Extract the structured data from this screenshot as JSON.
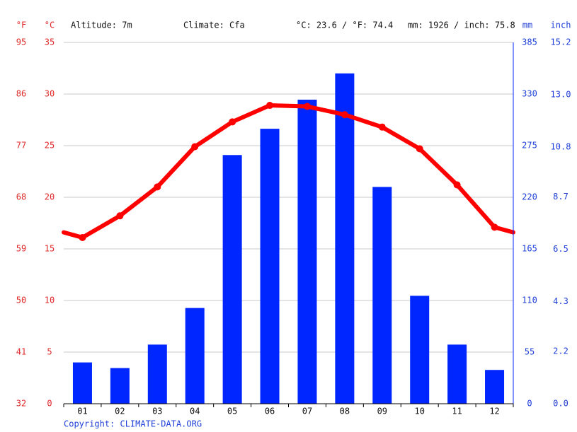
{
  "chart_data": {
    "type": "climate",
    "header": {
      "f_unit": "°F",
      "c_unit": "°C",
      "altitude": "Altitude: 7m",
      "climate": "Climate: Cfa",
      "temp_avg": "°C: 23.6 / °F: 74.4",
      "precip_total": "mm: 1926 / inch: 75.8",
      "mm_unit": "mm",
      "inch_unit": "inch"
    },
    "footer": "Copyright: CLIMATE-DATA.ORG",
    "categories": [
      "01",
      "02",
      "03",
      "04",
      "05",
      "06",
      "07",
      "08",
      "09",
      "10",
      "11",
      "12"
    ],
    "precipitation": {
      "color": "#0026ff",
      "values": [
        44,
        38,
        63,
        102,
        265,
        293,
        324,
        352,
        231,
        115,
        63,
        36
      ]
    },
    "temperature": {
      "color": "#ff0000",
      "values": [
        16.1,
        18.2,
        21.0,
        24.9,
        27.3,
        28.9,
        28.8,
        28.0,
        26.8,
        24.7,
        21.2,
        17.1
      ]
    },
    "ylim": [
      0,
      35
    ],
    "yticks": [
      0,
      5,
      10,
      15,
      20,
      25,
      30,
      35
    ],
    "yflim": [
      32,
      95
    ],
    "yfticks": [
      32,
      41,
      50,
      59,
      68,
      77,
      86,
      95
    ],
    "y2lim": [
      0,
      385
    ],
    "y2ticks": [
      0,
      55,
      110,
      165,
      220,
      275,
      330,
      385
    ],
    "y3lim": [
      0,
      15.2
    ],
    "y3ticks": [
      {
        "value": 0,
        "label": "0.0"
      },
      2.2,
      4.3,
      6.5,
      8.7,
      10.8,
      {
        "value": 13,
        "label": "13.0"
      },
      15.2
    ],
    "grid": true
  }
}
